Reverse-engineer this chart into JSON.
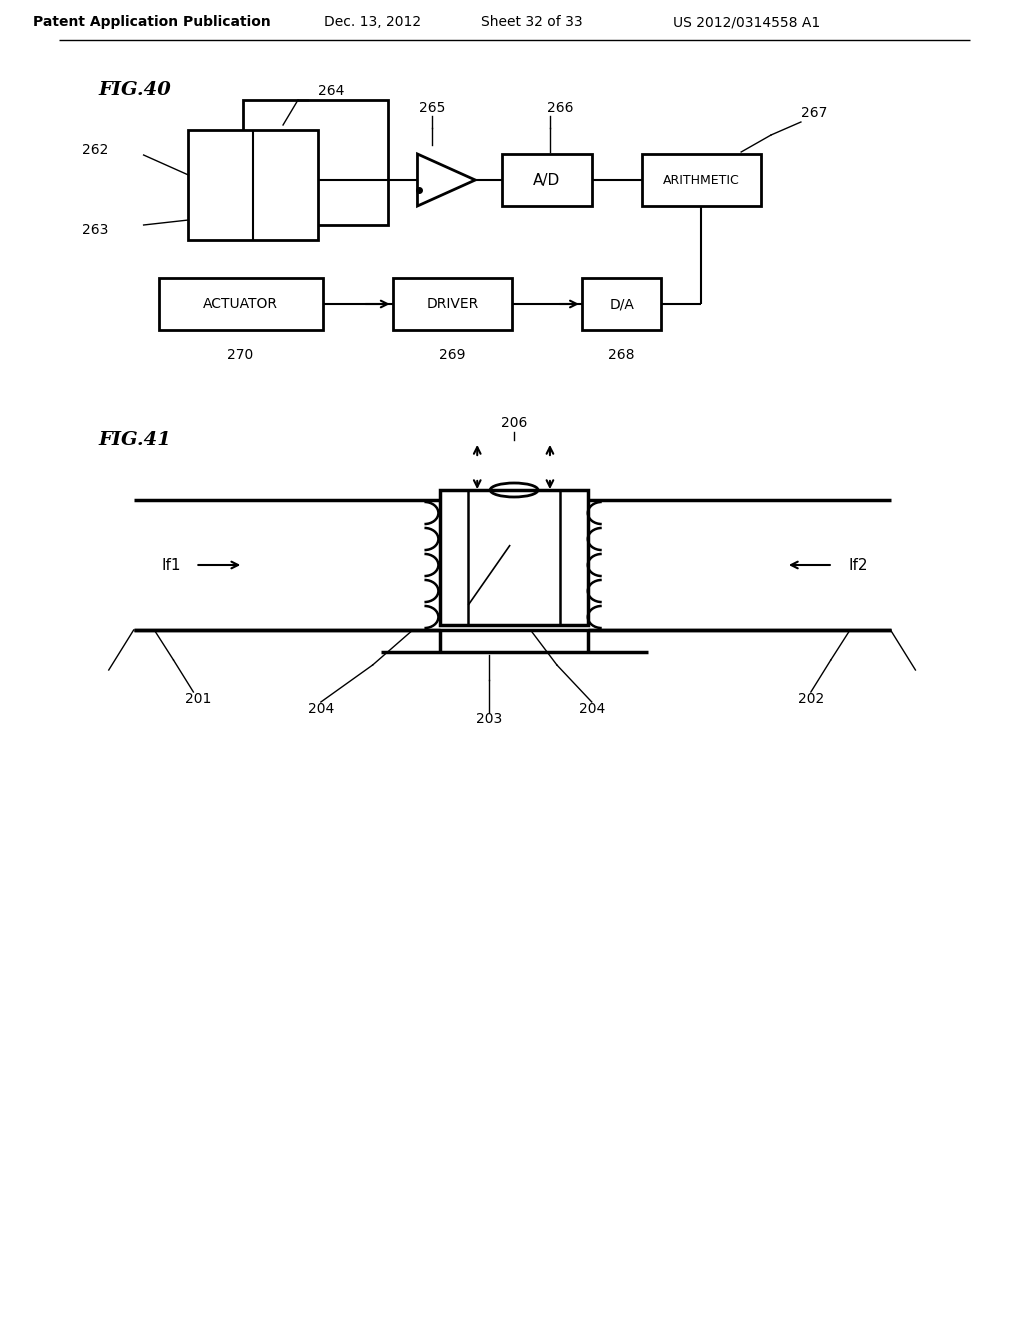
{
  "bg_color": "#ffffff",
  "header_text": "Patent Application Publication",
  "header_date": "Dec. 13, 2012",
  "header_sheet": "Sheet 32 of 33",
  "header_patent": "US 2012/0314558 A1",
  "fig40_label": "FIG.40",
  "fig41_label": "FIG.41",
  "line_color": "#000000",
  "text_color": "#000000"
}
